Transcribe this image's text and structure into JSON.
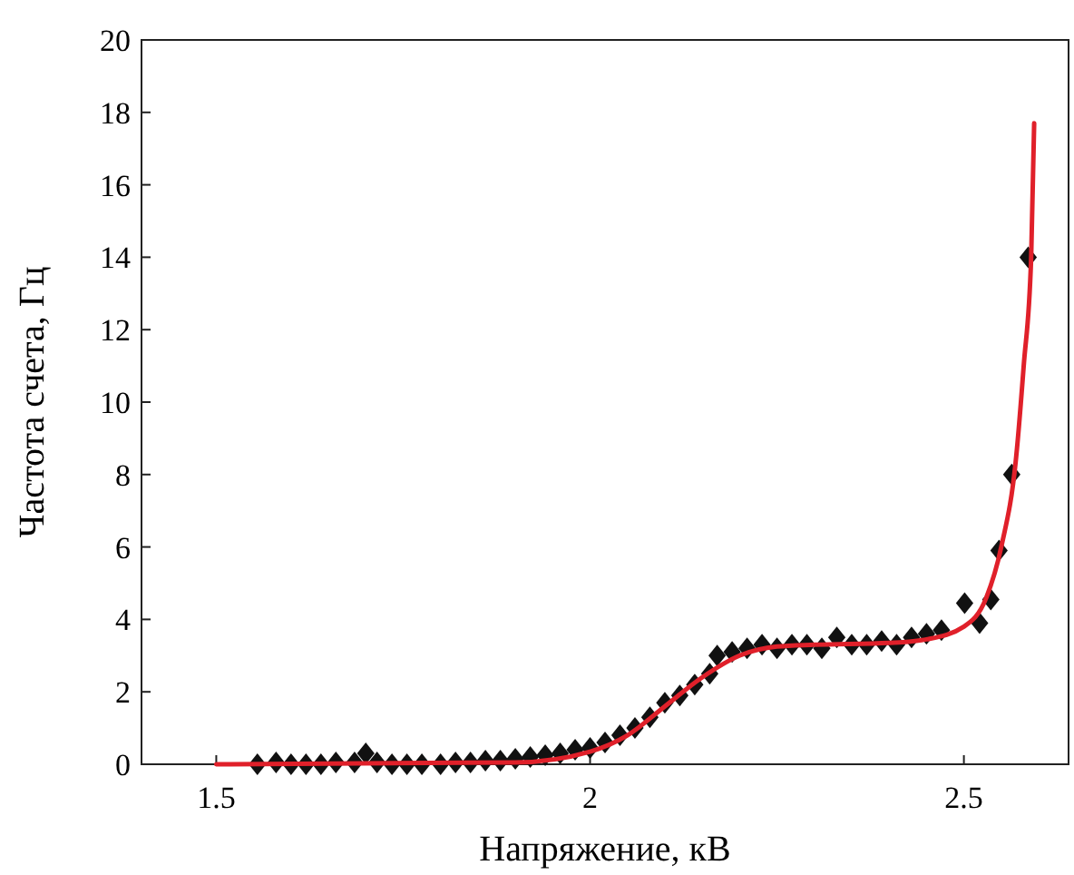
{
  "chart_data": {
    "type": "scatter",
    "xlabel": "Напряжение, кВ",
    "ylabel": "Частота счета, Гц",
    "xlim": [
      1.4,
      2.64
    ],
    "ylim": [
      0,
      20
    ],
    "xticks": [
      1.5,
      2,
      2.5
    ],
    "yticks": [
      0,
      2,
      4,
      6,
      8,
      10,
      12,
      14,
      16,
      18,
      20
    ],
    "grid": false,
    "marker": "diamond",
    "series": [
      {
        "color": "#111111",
        "x": [
          1.555,
          1.58,
          1.6,
          1.62,
          1.64,
          1.66,
          1.685,
          1.7,
          1.715,
          1.735,
          1.755,
          1.775,
          1.8,
          1.82,
          1.84,
          1.86,
          1.88,
          1.9,
          1.92,
          1.94,
          1.96,
          1.98,
          2.0,
          2.02,
          2.04,
          2.06,
          2.08,
          2.1,
          2.12,
          2.14,
          2.16,
          2.17,
          2.19,
          2.21,
          2.23,
          2.25,
          2.27,
          2.29,
          2.31,
          2.33,
          2.35,
          2.37,
          2.39,
          2.41,
          2.43,
          2.45,
          2.47,
          2.501,
          2.521,
          2.536,
          2.547,
          2.564,
          2.586
        ],
        "values": [
          0,
          0.05,
          0,
          0,
          0,
          0.05,
          0.05,
          0.3,
          0.05,
          0,
          0,
          0,
          0,
          0.05,
          0.05,
          0.1,
          0.1,
          0.15,
          0.2,
          0.25,
          0.3,
          0.4,
          0.45,
          0.6,
          0.8,
          1.0,
          1.3,
          1.7,
          1.9,
          2.2,
          2.5,
          3.0,
          3.1,
          3.2,
          3.3,
          3.2,
          3.3,
          3.3,
          3.2,
          3.5,
          3.3,
          3.3,
          3.4,
          3.3,
          3.5,
          3.6,
          3.7,
          4.45,
          3.9,
          4.55,
          5.9,
          8.0,
          14.0
        ]
      },
      {
        "type": "line",
        "color": "#e0202a",
        "line_style": "solid",
        "marker": "none",
        "x": [
          1.5,
          1.9,
          2.0,
          2.05,
          2.1,
          2.15,
          2.2,
          2.25,
          2.3,
          2.4,
          2.45,
          2.5,
          2.53,
          2.55,
          2.57,
          2.58,
          2.59,
          2.594
        ],
        "values": [
          0,
          0.05,
          0.35,
          0.8,
          1.6,
          2.4,
          3.0,
          3.25,
          3.3,
          3.35,
          3.45,
          3.8,
          4.6,
          6,
          8.5,
          11,
          14,
          17.7
        ]
      }
    ]
  }
}
